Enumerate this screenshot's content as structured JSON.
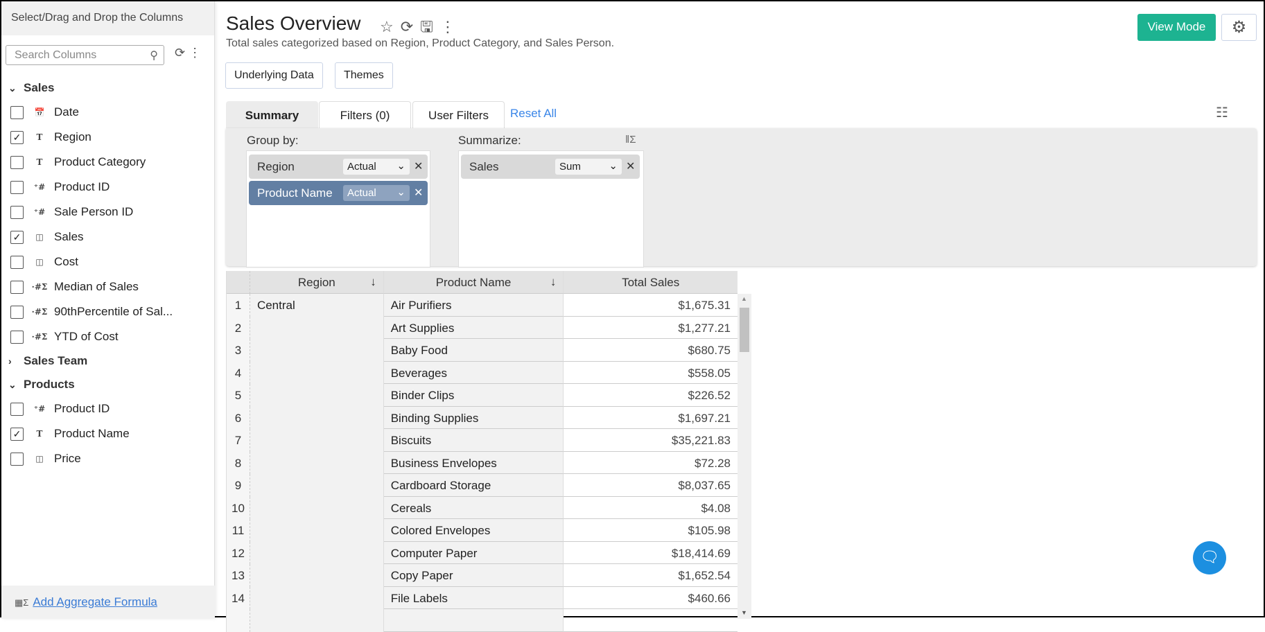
{
  "sidebar": {
    "header": "Select/Drag and Drop the Columns",
    "search_placeholder": "Search Columns",
    "groups": [
      {
        "name": "Sales",
        "expanded": true,
        "items": [
          {
            "label": "Date",
            "type_icon": "calendar-icon",
            "checked": false
          },
          {
            "label": "Region",
            "type_icon": "text-icon",
            "checked": true
          },
          {
            "label": "Product Category",
            "type_icon": "text-icon",
            "checked": false
          },
          {
            "label": "Product ID",
            "type_icon": "numeric-id-icon",
            "checked": false
          },
          {
            "label": "Sale Person ID",
            "type_icon": "numeric-id-icon",
            "checked": false
          },
          {
            "label": "Sales",
            "type_icon": "currency-icon",
            "checked": true
          },
          {
            "label": "Cost",
            "type_icon": "currency-icon",
            "checked": false
          },
          {
            "label": "Median of Sales",
            "type_icon": "aggregate-formula-icon",
            "checked": false
          },
          {
            "label": "90thPercentile of Sal...",
            "type_icon": "aggregate-formula-icon",
            "checked": false
          },
          {
            "label": "YTD of Cost",
            "type_icon": "aggregate-formula-icon",
            "checked": false
          }
        ]
      },
      {
        "name": "Sales Team",
        "expanded": false,
        "items": []
      },
      {
        "name": "Products",
        "expanded": true,
        "items": [
          {
            "label": "Product ID",
            "type_icon": "numeric-id-icon",
            "checked": false
          },
          {
            "label": "Product Name",
            "type_icon": "text-icon",
            "checked": true
          },
          {
            "label": "Price",
            "type_icon": "currency-icon",
            "checked": false
          }
        ]
      }
    ],
    "footer_link": "Add Aggregate Formula"
  },
  "header": {
    "title": "Sales Overview",
    "description": "Total sales categorized based on Region, Product Category, and Sales Person.",
    "view_mode": "View Mode"
  },
  "toolbar": {
    "underlying_data": "Underlying Data",
    "themes": "Themes"
  },
  "tabs": [
    {
      "label": "Summary",
      "active": true
    },
    {
      "label": "Filters  (0)",
      "active": false
    },
    {
      "label": "User Filters",
      "active": false
    }
  ],
  "reset_all": "Reset All",
  "summary": {
    "group_by_label": "Group by:",
    "group_by": [
      {
        "column": "Region",
        "option": "Actual",
        "selected": false
      },
      {
        "column": "Product Name",
        "option": "Actual",
        "selected": true
      }
    ],
    "summarize_label": "Summarize:",
    "summarize": [
      {
        "column": "Sales",
        "option": "Sum"
      }
    ]
  },
  "table": {
    "columns": [
      "Region",
      "Product Name",
      "Total Sales"
    ],
    "rows": [
      {
        "n": "1",
        "region": "Central",
        "product": "Air Purifiers",
        "total": "$1,675.31"
      },
      {
        "n": "2",
        "region": "",
        "product": "Art Supplies",
        "total": "$1,277.21"
      },
      {
        "n": "3",
        "region": "",
        "product": "Baby Food",
        "total": "$680.75"
      },
      {
        "n": "4",
        "region": "",
        "product": "Beverages",
        "total": "$558.05"
      },
      {
        "n": "5",
        "region": "",
        "product": "Binder Clips",
        "total": "$226.52"
      },
      {
        "n": "6",
        "region": "",
        "product": "Binding Supplies",
        "total": "$1,697.21"
      },
      {
        "n": "7",
        "region": "",
        "product": "Biscuits",
        "total": "$35,221.83"
      },
      {
        "n": "8",
        "region": "",
        "product": "Business Envelopes",
        "total": "$72.28"
      },
      {
        "n": "9",
        "region": "",
        "product": "Cardboard Storage",
        "total": "$8,037.65"
      },
      {
        "n": "10",
        "region": "",
        "product": "Cereals",
        "total": "$4.08"
      },
      {
        "n": "11",
        "region": "",
        "product": "Colored Envelopes",
        "total": "$105.98"
      },
      {
        "n": "12",
        "region": "",
        "product": "Computer Paper",
        "total": "$18,414.69"
      },
      {
        "n": "13",
        "region": "",
        "product": "Copy Paper",
        "total": "$1,652.54"
      },
      {
        "n": "14",
        "region": "",
        "product": "File Labels",
        "total": "$460.66"
      }
    ]
  },
  "colors": {
    "accent": "#1db391",
    "link": "#3a86e8",
    "selected_chip": "#627fa3",
    "chat": "#1c8fe0"
  }
}
